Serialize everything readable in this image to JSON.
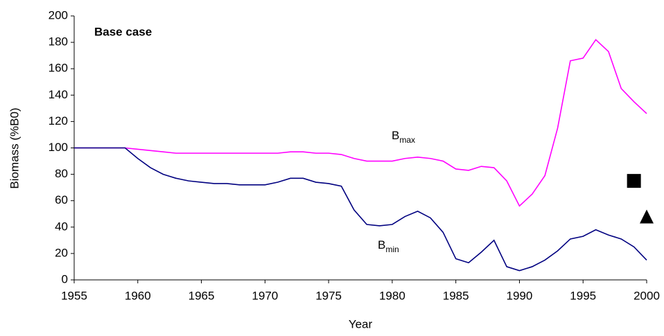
{
  "chart_data": {
    "type": "line",
    "annotations": [
      {
        "text": "Base case",
        "bold": true
      }
    ],
    "x_label": "Year",
    "y_label": "Biomass (%B0)",
    "x": [
      1955,
      1956,
      1957,
      1958,
      1959,
      1960,
      1961,
      1962,
      1963,
      1964,
      1965,
      1966,
      1967,
      1968,
      1969,
      1970,
      1971,
      1972,
      1973,
      1974,
      1975,
      1976,
      1977,
      1978,
      1979,
      1980,
      1981,
      1982,
      1983,
      1984,
      1985,
      1986,
      1987,
      1988,
      1989,
      1990,
      1991,
      1992,
      1993,
      1994,
      1995,
      1996,
      1997,
      1998,
      1999,
      2000
    ],
    "series": [
      {
        "label": {
          "text": "B",
          "subscript": "max"
        },
        "color": "#ff00ff",
        "values": [
          100,
          100,
          100,
          100,
          100,
          99,
          98,
          97,
          96,
          96,
          96,
          96,
          96,
          96,
          96,
          96,
          96,
          97,
          97,
          96,
          96,
          95,
          92,
          90,
          90,
          90,
          92,
          93,
          92,
          90,
          84,
          83,
          86,
          85,
          75,
          56,
          65,
          79,
          115,
          166,
          168,
          182,
          173,
          145,
          135,
          126
        ]
      },
      {
        "label": {
          "text": "B",
          "subscript": "min"
        },
        "color": "#000080",
        "values": [
          100,
          100,
          100,
          100,
          100,
          92,
          85,
          80,
          77,
          75,
          74,
          73,
          73,
          72,
          72,
          72,
          74,
          77,
          77,
          74,
          73,
          71,
          53,
          42,
          41,
          42,
          48,
          52,
          47,
          36,
          16,
          13,
          21,
          30,
          10,
          7,
          10,
          15,
          22,
          31,
          33,
          38,
          34,
          31,
          25,
          15
        ]
      }
    ],
    "points": [
      {
        "x": 1999,
        "y": 75,
        "shape": "square",
        "color": "#000000"
      },
      {
        "x": 2000,
        "y": 48,
        "shape": "triangle",
        "color": "#000000"
      }
    ],
    "xlim": [
      1955,
      2000
    ],
    "xticks": [
      1955,
      1960,
      1965,
      1970,
      1975,
      1980,
      1985,
      1990,
      1995,
      2000
    ],
    "ylim": [
      0,
      200
    ],
    "yticks": [
      0,
      20,
      40,
      60,
      80,
      100,
      120,
      140,
      160,
      180,
      200
    ],
    "grid": false
  }
}
